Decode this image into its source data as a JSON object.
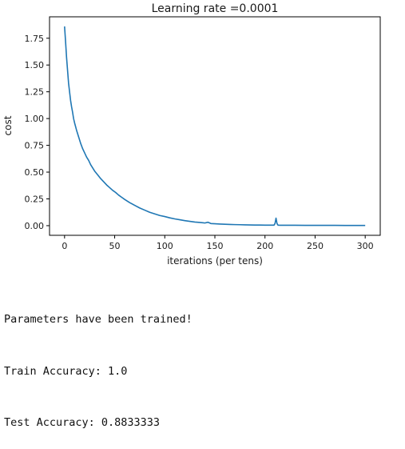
{
  "chart_data": {
    "type": "line",
    "title": "Learning rate =0.0001",
    "xlabel": "iterations (per tens)",
    "ylabel": "cost",
    "xlim": [
      -15,
      315
    ],
    "ylim": [
      -0.09,
      1.95
    ],
    "xticks": [
      0,
      50,
      100,
      150,
      200,
      250,
      300
    ],
    "xtick_labels": [
      "0",
      "50",
      "100",
      "150",
      "200",
      "250",
      "300"
    ],
    "yticks": [
      0.0,
      0.25,
      0.5,
      0.75,
      1.0,
      1.25,
      1.5,
      1.75
    ],
    "ytick_labels": [
      "0.00",
      "0.25",
      "0.50",
      "0.75",
      "1.00",
      "1.25",
      "1.50",
      "1.75"
    ],
    "grid": false,
    "legend": "none",
    "series": [
      {
        "color": "#1f77b4",
        "x": [
          0,
          1,
          2,
          3,
          4,
          5,
          6,
          7,
          8,
          9,
          10,
          12,
          14,
          16,
          18,
          20,
          22,
          24,
          26,
          28,
          30,
          33,
          36,
          39,
          42,
          45,
          48,
          51,
          54,
          57,
          60,
          65,
          70,
          75,
          80,
          85,
          90,
          95,
          100,
          105,
          110,
          115,
          120,
          125,
          130,
          135,
          140,
          143,
          146,
          150,
          155,
          160,
          165,
          170,
          175,
          180,
          185,
          190,
          195,
          200,
          205,
          209,
          210,
          211,
          212,
          213,
          215,
          220,
          230,
          240,
          250,
          260,
          270,
          280,
          290,
          300
        ],
        "y": [
          1.86,
          1.72,
          1.57,
          1.45,
          1.33,
          1.25,
          1.17,
          1.11,
          1.06,
          1.0,
          0.96,
          0.89,
          0.83,
          0.77,
          0.72,
          0.68,
          0.64,
          0.61,
          0.57,
          0.54,
          0.51,
          0.475,
          0.44,
          0.41,
          0.38,
          0.355,
          0.33,
          0.31,
          0.285,
          0.265,
          0.245,
          0.215,
          0.19,
          0.165,
          0.145,
          0.125,
          0.11,
          0.095,
          0.085,
          0.073,
          0.063,
          0.055,
          0.047,
          0.04,
          0.034,
          0.03,
          0.025,
          0.032,
          0.02,
          0.018,
          0.015,
          0.013,
          0.011,
          0.01,
          0.009,
          0.008,
          0.007,
          0.006,
          0.006,
          0.005,
          0.005,
          0.005,
          0.02,
          0.07,
          0.02,
          0.005,
          0.004,
          0.004,
          0.004,
          0.003,
          0.003,
          0.003,
          0.003,
          0.002,
          0.002,
          0.002
        ]
      }
    ]
  },
  "output": {
    "lines": [
      "Parameters have been trained!",
      "Train Accuracy: 1.0",
      "Test Accuracy: 0.8833333"
    ]
  }
}
